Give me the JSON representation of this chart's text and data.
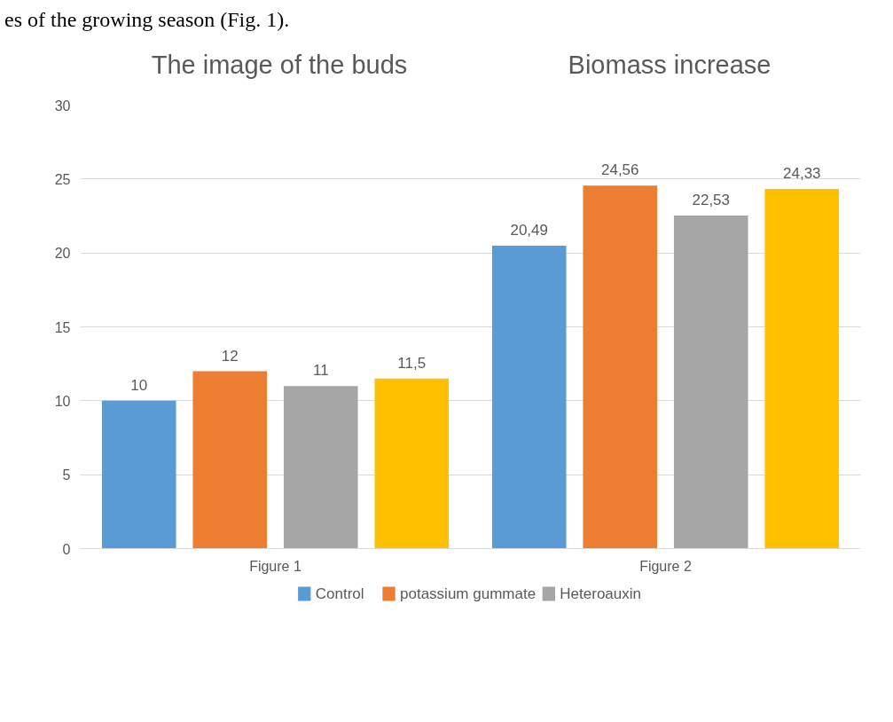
{
  "chart_data": {
    "type": "bar",
    "categories": [
      "Figure 1",
      "Figure 2"
    ],
    "series": [
      {
        "name": "Control",
        "color": "#5b9bd5",
        "values": [
          10,
          20.49
        ],
        "value_labels": [
          "10",
          "20,49"
        ]
      },
      {
        "name": "potassium gummate",
        "color": "#ed7d31",
        "values": [
          12,
          24.56
        ],
        "value_labels": [
          "12",
          "24,56"
        ]
      },
      {
        "name": "Heteroauxin",
        "color": "#a5a5a5",
        "values": [
          11,
          22.53
        ],
        "value_labels": [
          "11",
          "22,53"
        ]
      },
      {
        "color": "#ffc000",
        "values": [
          11.5,
          24.33
        ],
        "value_labels": [
          "11,5",
          "24,33"
        ]
      }
    ],
    "annotations": [
      "es of the growing season (Fig. 1).",
      "The image of the buds",
      "Biomass increase"
    ],
    "ylim": [
      0,
      30
    ],
    "yticks": [
      0,
      5,
      10,
      15,
      20,
      25,
      30
    ],
    "grid": "y",
    "legend": "bottom"
  }
}
